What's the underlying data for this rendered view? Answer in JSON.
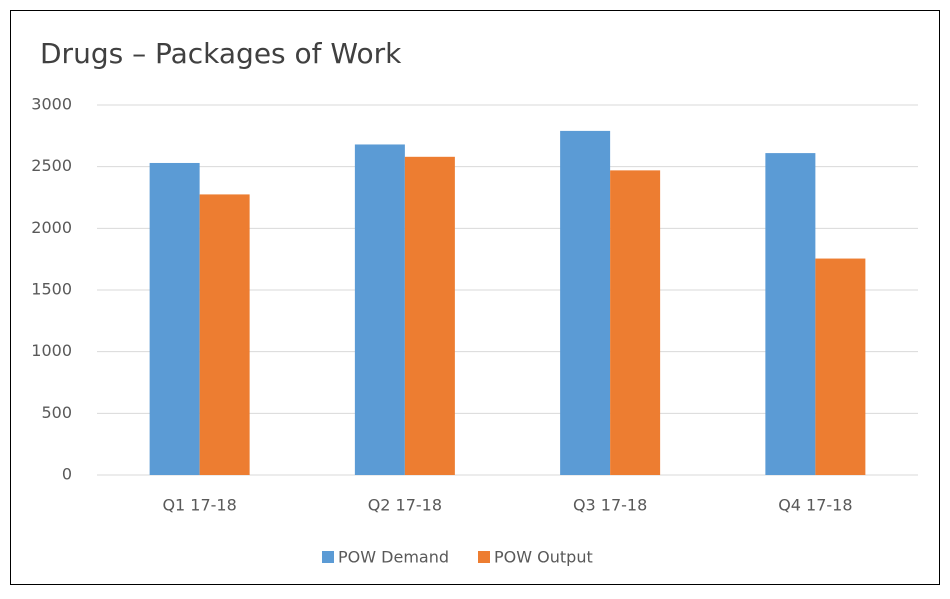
{
  "chart_data": {
    "type": "bar",
    "title": "Drugs – Packages of Work",
    "categories": [
      "Q1 17-18",
      "Q2 17-18",
      "Q3 17-18",
      "Q4 17-18"
    ],
    "series": [
      {
        "name": "POW Demand",
        "color": "#5b9bd5",
        "values": [
          2530,
          2680,
          2790,
          2610
        ]
      },
      {
        "name": "POW Output",
        "color": "#ed7d31",
        "values": [
          2275,
          2580,
          2470,
          1755
        ]
      }
    ],
    "ylim": [
      0,
      3000
    ],
    "yticks": [
      0,
      500,
      1000,
      1500,
      2000,
      2500,
      3000
    ],
    "grid": true,
    "legend": "bottom"
  }
}
